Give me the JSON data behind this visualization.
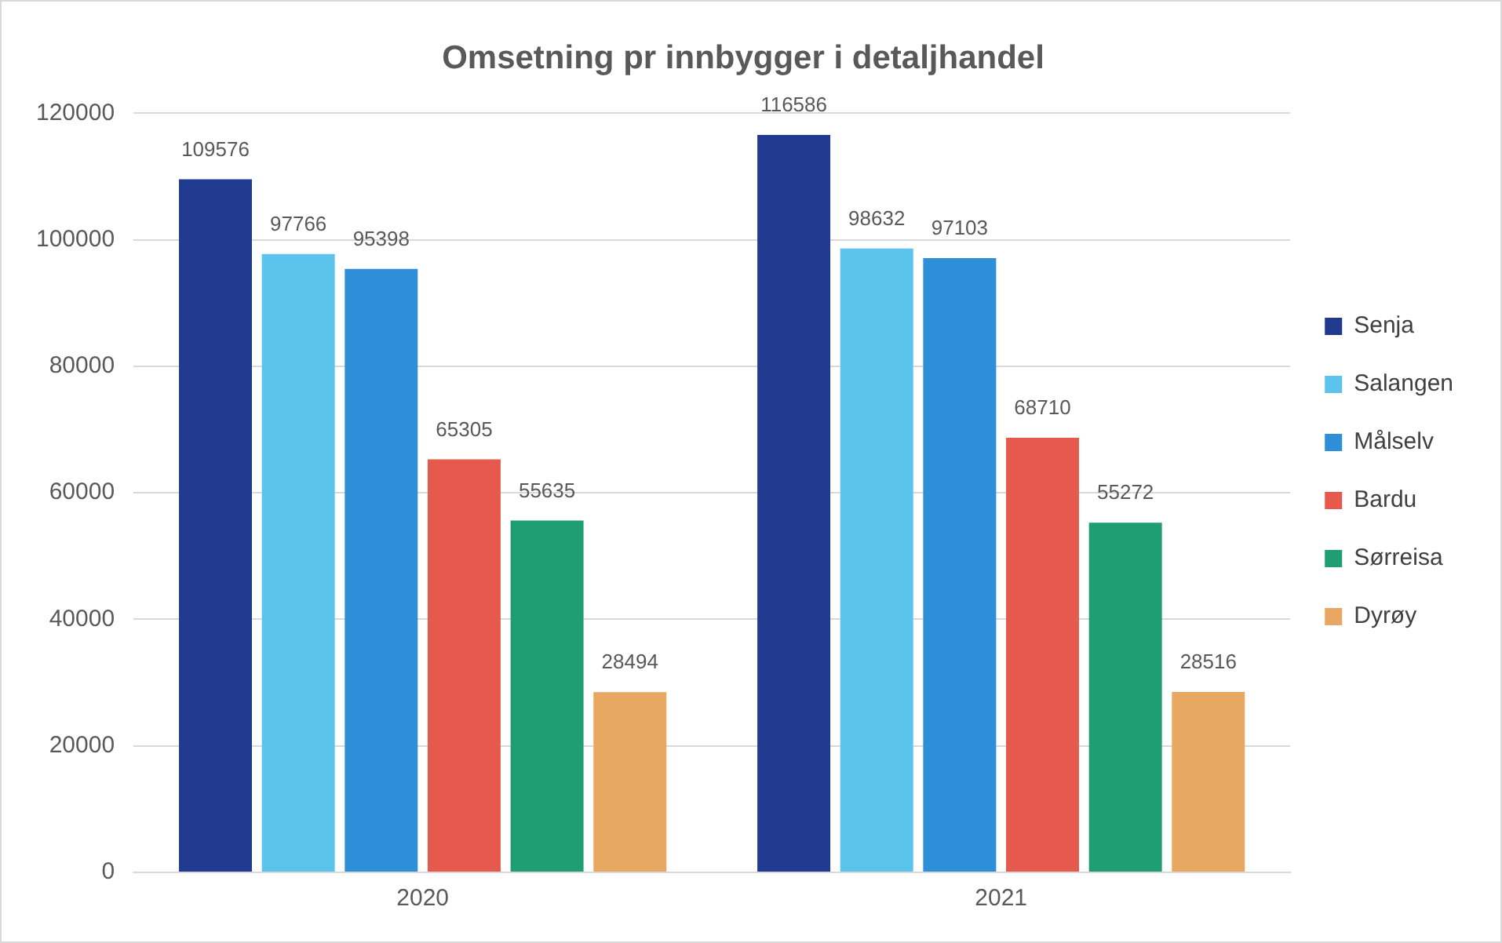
{
  "chart_data": {
    "type": "bar",
    "title": "Omsetning pr innbygger i detaljhandel",
    "categories": [
      "2020",
      "2021"
    ],
    "series": [
      {
        "name": "Senja",
        "color": "#1f3a8f",
        "values": [
          109576,
          116586
        ]
      },
      {
        "name": "Salangen",
        "color": "#5cc3ec",
        "values": [
          97766,
          98632
        ]
      },
      {
        "name": "Målselv",
        "color": "#2f8ed8",
        "values": [
          95398,
          97103
        ]
      },
      {
        "name": "Bardu",
        "color": "#e65a4e",
        "values": [
          65305,
          68710
        ]
      },
      {
        "name": "Sørreisa",
        "color": "#1e9e72",
        "values": [
          55635,
          55272
        ]
      },
      {
        "name": "Dyrøy",
        "color": "#e8a862",
        "values": [
          28494,
          28516
        ]
      }
    ],
    "ylim": [
      0,
      120000
    ],
    "yticks": [
      0,
      20000,
      40000,
      60000,
      80000,
      100000,
      120000
    ],
    "grid": "y",
    "legend": "right",
    "data_labels": true
  }
}
